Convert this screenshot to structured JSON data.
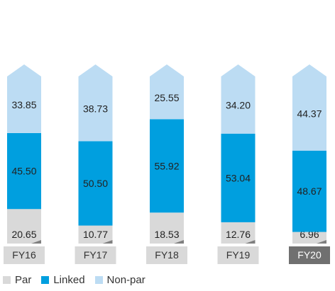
{
  "chart_data": {
    "type": "bar",
    "stacked": true,
    "categories": [
      "FY16",
      "FY17",
      "FY18",
      "FY19",
      "FY20"
    ],
    "highlighted_category": "FY20",
    "series": [
      {
        "name": "Par",
        "values": [
          20.65,
          10.77,
          18.53,
          12.76,
          6.96
        ],
        "color": "#d9d9d9"
      },
      {
        "name": "Linked",
        "values": [
          45.5,
          50.5,
          55.92,
          53.04,
          48.67
        ],
        "color": "#009fdf"
      },
      {
        "name": "Non-par",
        "values": [
          33.85,
          38.73,
          25.55,
          34.2,
          44.37
        ],
        "color": "#bcdcf3"
      }
    ],
    "value_labels": [
      [
        "20.65",
        "10.77",
        "18.53",
        "12.76",
        "6.96"
      ],
      [
        "45.50",
        "50.50",
        "55.92",
        "53.04",
        "48.67"
      ],
      [
        "33.85",
        "38.73",
        "25.55",
        "34.20",
        "44.37"
      ]
    ],
    "ylim": [
      0,
      100
    ],
    "grid": false,
    "legend_position": "bottom-left",
    "colors": {
      "tick_bg": "#d9d9d9",
      "tick_bg_highlight": "#707070",
      "corner_shadow": "#7f7f7f"
    }
  }
}
